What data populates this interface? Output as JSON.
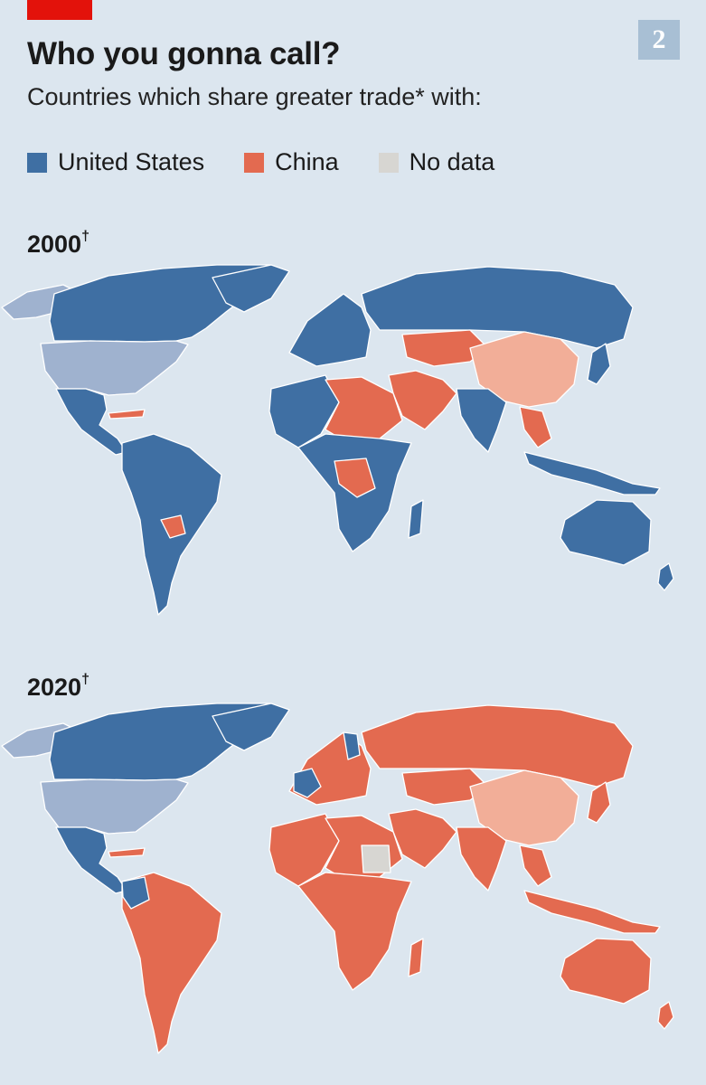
{
  "header": {
    "title": "Who you gonna call?",
    "subtitle": "Countries which share greater trade* with:",
    "badge": "2"
  },
  "legend": [
    {
      "label": "United States",
      "color": "#3f6fa3"
    },
    {
      "label": "China",
      "color": "#e36a50"
    },
    {
      "label": "No data",
      "color": "#d7d6d2"
    }
  ],
  "colors": {
    "us": "#3f6fa3",
    "china": "#e36a50",
    "us_self": "#9fb2cf",
    "china_self": "#f2ae98",
    "no_data": "#d7d6d2",
    "ocean": "#dce6ef"
  },
  "maps": [
    {
      "year": "2000",
      "mark": "†"
    },
    {
      "year": "2020",
      "mark": "†"
    }
  ]
}
